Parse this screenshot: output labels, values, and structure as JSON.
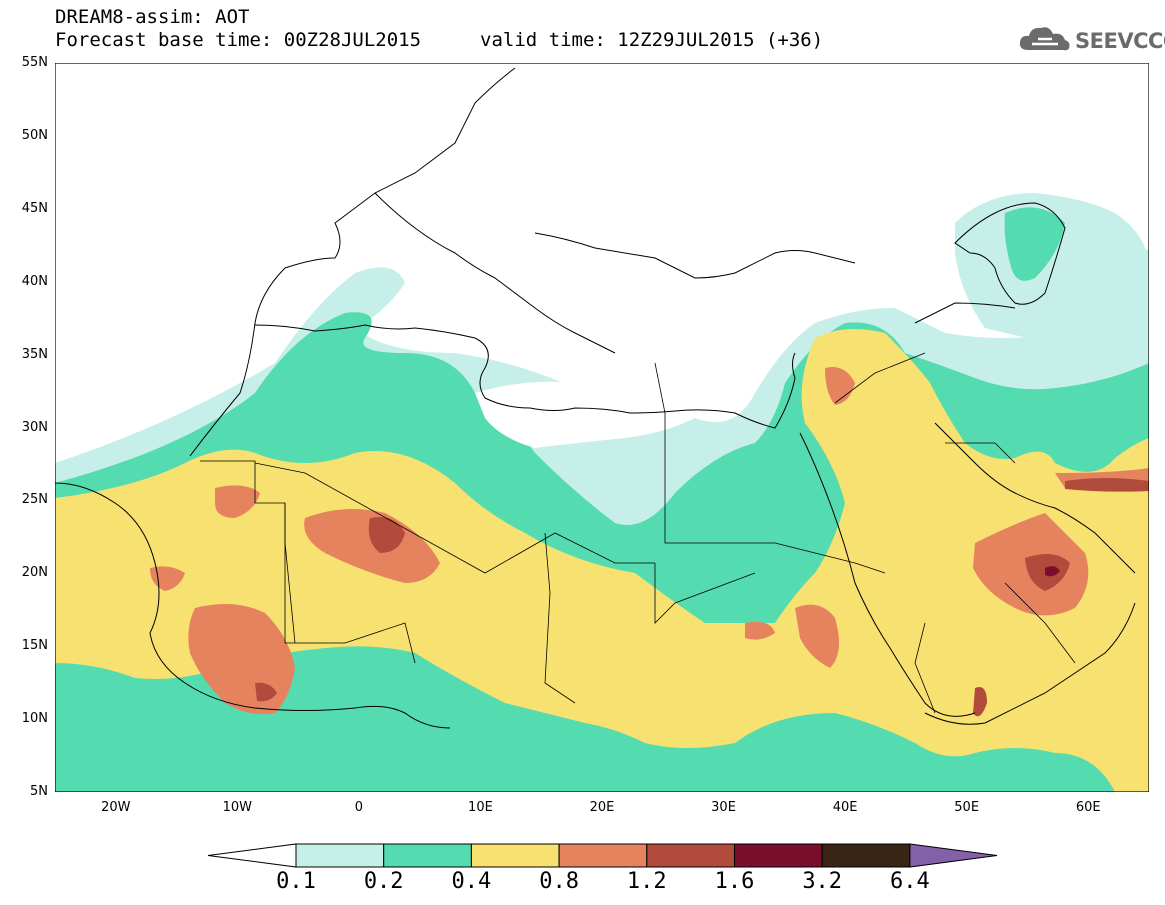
{
  "header": {
    "title": "DREAM8-assim: AOT",
    "base_time": "Forecast base time: 00Z28JUL2015",
    "valid_time": "valid time: 12Z29JUL2015 (+36)"
  },
  "logo": {
    "text": "SEEVCCC",
    "icon": "cloud-icon"
  },
  "map": {
    "lat_labels": [
      "55N",
      "50N",
      "45N",
      "40N",
      "35N",
      "30N",
      "25N",
      "20N",
      "15N",
      "10N",
      "5N"
    ],
    "lon_labels": [
      "20W",
      "10W",
      "0",
      "10E",
      "20E",
      "30E",
      "40E",
      "50E",
      "60E"
    ],
    "lat_range": [
      5,
      55
    ],
    "lon_range": [
      -25,
      65
    ]
  },
  "legend": {
    "thresholds": [
      "0.1",
      "0.2",
      "0.4",
      "0.8",
      "1.2",
      "1.6",
      "3.2",
      "6.4"
    ],
    "colors": [
      "#c7efe9",
      "#55dbb0",
      "#f7e171",
      "#e6835f",
      "#b14b3b",
      "#7a0f2d",
      "#3a2414"
    ],
    "under_color": "#ffffff",
    "over_color": "#8460a8"
  }
}
